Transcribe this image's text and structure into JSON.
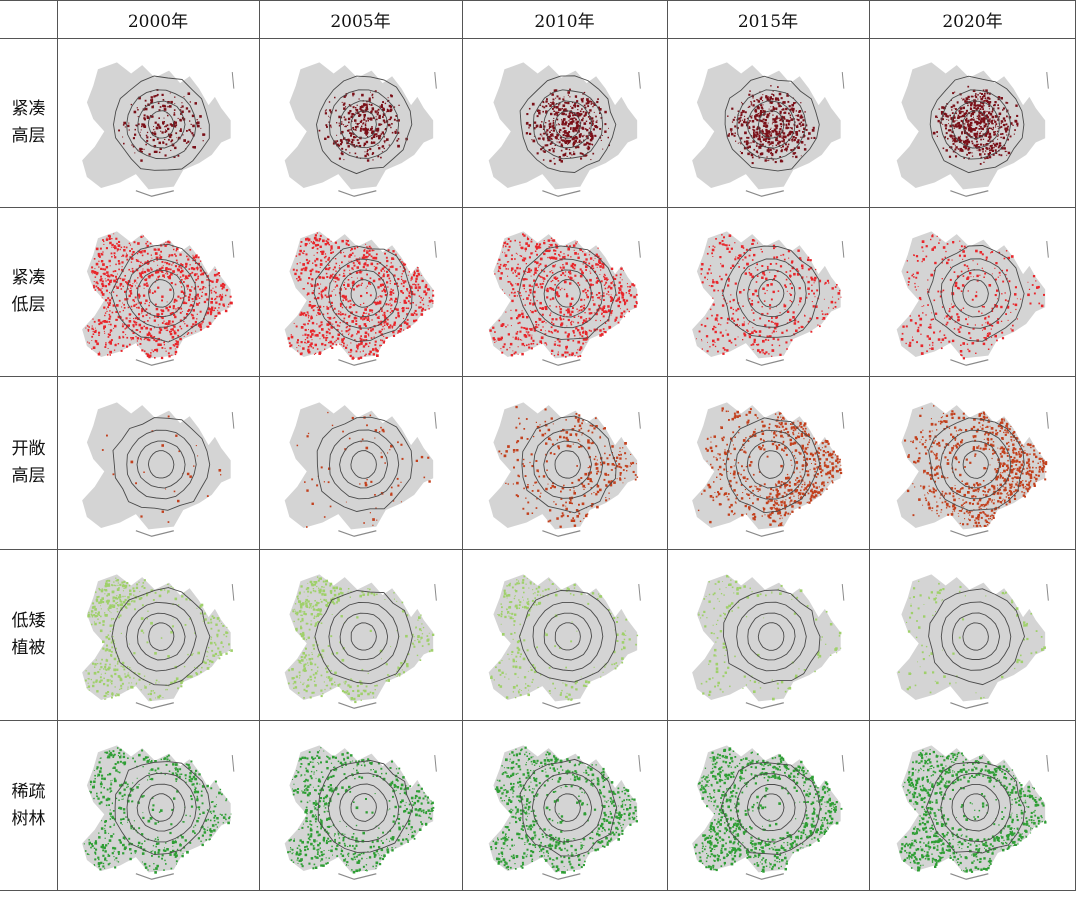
{
  "columns": [
    "2000年",
    "2005年",
    "2010年",
    "2015年",
    "2020年"
  ],
  "rows": [
    {
      "label_1": "紧凑",
      "label_2": "高层",
      "color": "#7a1018",
      "density": [
        0.35,
        0.55,
        0.75,
        0.85,
        0.9
      ],
      "pattern": "center"
    },
    {
      "label_1": "紧凑",
      "label_2": "低层",
      "color": "#e8262b",
      "density": [
        1.0,
        1.0,
        0.85,
        0.45,
        0.35
      ],
      "pattern": "wide"
    },
    {
      "label_1": "开敞",
      "label_2": "高层",
      "color": "#c2401d",
      "density": [
        0.03,
        0.08,
        0.35,
        0.75,
        0.85
      ],
      "pattern": "ring"
    },
    {
      "label_1": "低矮",
      "label_2": "植被",
      "color": "#9fd06a",
      "density": [
        0.6,
        0.5,
        0.35,
        0.18,
        0.12
      ],
      "pattern": "edge"
    },
    {
      "label_1": "稀疏",
      "label_2": "树林",
      "color": "#2f9e35",
      "density": [
        0.6,
        0.7,
        0.8,
        1.0,
        1.0
      ],
      "pattern": "edge-strong"
    }
  ],
  "colors": {
    "map_fill": "#d4d4d4",
    "ring_stroke": "#4a4a4a",
    "grid_line": "#555555"
  }
}
